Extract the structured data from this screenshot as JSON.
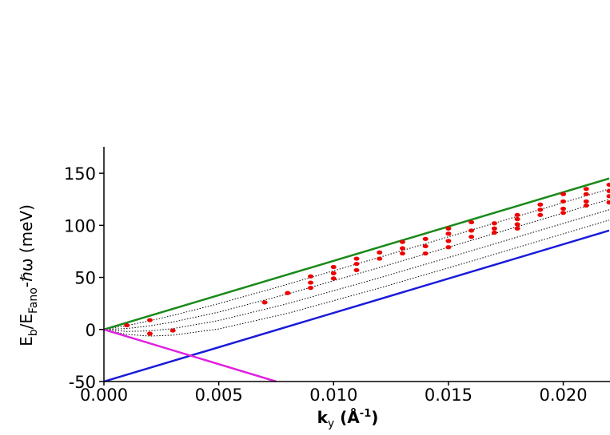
{
  "chart_data": {
    "type": "line",
    "xlabel_parts": [
      "k",
      "y",
      " (Å",
      "-1",
      ")"
    ],
    "ylabel_parts": [
      "E",
      "b",
      "/E",
      "Fano",
      "-ℏω (meV)"
    ],
    "xlim": [
      0,
      0.022
    ],
    "ylim": [
      -50,
      175
    ],
    "xticks": [
      {
        "value": 0,
        "label": "0.000"
      },
      {
        "value": 0.005,
        "label": "0.005"
      },
      {
        "value": 0.01,
        "label": "0.010"
      },
      {
        "value": 0.015,
        "label": "0.015"
      },
      {
        "value": 0.02,
        "label": "0.020"
      }
    ],
    "yticks": [
      -50,
      0,
      50,
      100,
      150
    ],
    "series": [
      {
        "mode": "dotted",
        "color": "#000000",
        "x": [
          0,
          0.001,
          0.002,
          0.003,
          0.005,
          0.008,
          0.012,
          0.016,
          0.022
        ],
        "values": [
          0,
          3.8,
          8.3,
          13.5,
          24.8,
          43.4,
          69.3,
          95.5,
          135.0
        ]
      },
      {
        "mode": "dotted",
        "color": "#000000",
        "x": [
          0,
          0.001,
          0.002,
          0.003,
          0.005,
          0.008,
          0.012,
          0.016,
          0.022
        ],
        "values": [
          0,
          0.9,
          3.5,
          7.1,
          16.7,
          34.1,
          59.5,
          85.6,
          125.0
        ]
      },
      {
        "mode": "dotted",
        "color": "#000000",
        "x": [
          0,
          0.001,
          0.002,
          0.003,
          0.005,
          0.008,
          0.012,
          0.016,
          0.022
        ],
        "values": [
          0,
          -1.9,
          -1.4,
          0.8,
          8.6,
          24.8,
          49.6,
          75.6,
          115.0
        ]
      },
      {
        "mode": "dotted",
        "color": "#000000",
        "x": [
          0,
          0.001,
          0.002,
          0.003,
          0.005,
          0.008,
          0.012,
          0.016,
          0.022
        ],
        "values": [
          0,
          -4.8,
          -6.3,
          -5.5,
          0.5,
          15.5,
          39.8,
          65.6,
          105.0
        ]
      },
      {
        "mode": "solid",
        "color": "#1a8a1a",
        "x": [
          0,
          0.022
        ],
        "values": [
          0,
          145
        ]
      },
      {
        "mode": "solid",
        "color": "#1a1adb",
        "x": [
          0,
          0.022
        ],
        "values": [
          -50,
          95
        ]
      },
      {
        "mode": "solid",
        "color": "#e020e0",
        "x": [
          0,
          0.0075
        ],
        "values": [
          0,
          -50
        ]
      },
      {
        "mode": "points",
        "color": "#ee0000",
        "x": [
          0.001,
          0.002,
          0.002,
          0.003,
          0.007,
          0.008,
          0.009,
          0.009,
          0.009,
          0.01,
          0.01,
          0.01,
          0.011,
          0.011,
          0.011,
          0.012,
          0.012,
          0.013,
          0.013,
          0.013,
          0.014,
          0.014,
          0.014,
          0.015,
          0.015,
          0.015,
          0.015,
          0.016,
          0.016,
          0.016,
          0.017,
          0.017,
          0.017,
          0.018,
          0.018,
          0.018,
          0.018,
          0.019,
          0.019,
          0.019,
          0.02,
          0.02,
          0.02,
          0.02,
          0.021,
          0.021,
          0.021,
          0.021,
          0.022,
          0.022,
          0.022,
          0.022
        ],
        "values": [
          4,
          9,
          -4,
          -1,
          26,
          35,
          51,
          45,
          40,
          60,
          54,
          49,
          68,
          63,
          57,
          74,
          68,
          84,
          78,
          73,
          87,
          80,
          73,
          97,
          92,
          85,
          79,
          103,
          95,
          89,
          102,
          97,
          93,
          110,
          106,
          101,
          97,
          120,
          115,
          110,
          130,
          123,
          116,
          112,
          135,
          130,
          123,
          119,
          139,
          133,
          128,
          122
        ]
      }
    ]
  }
}
